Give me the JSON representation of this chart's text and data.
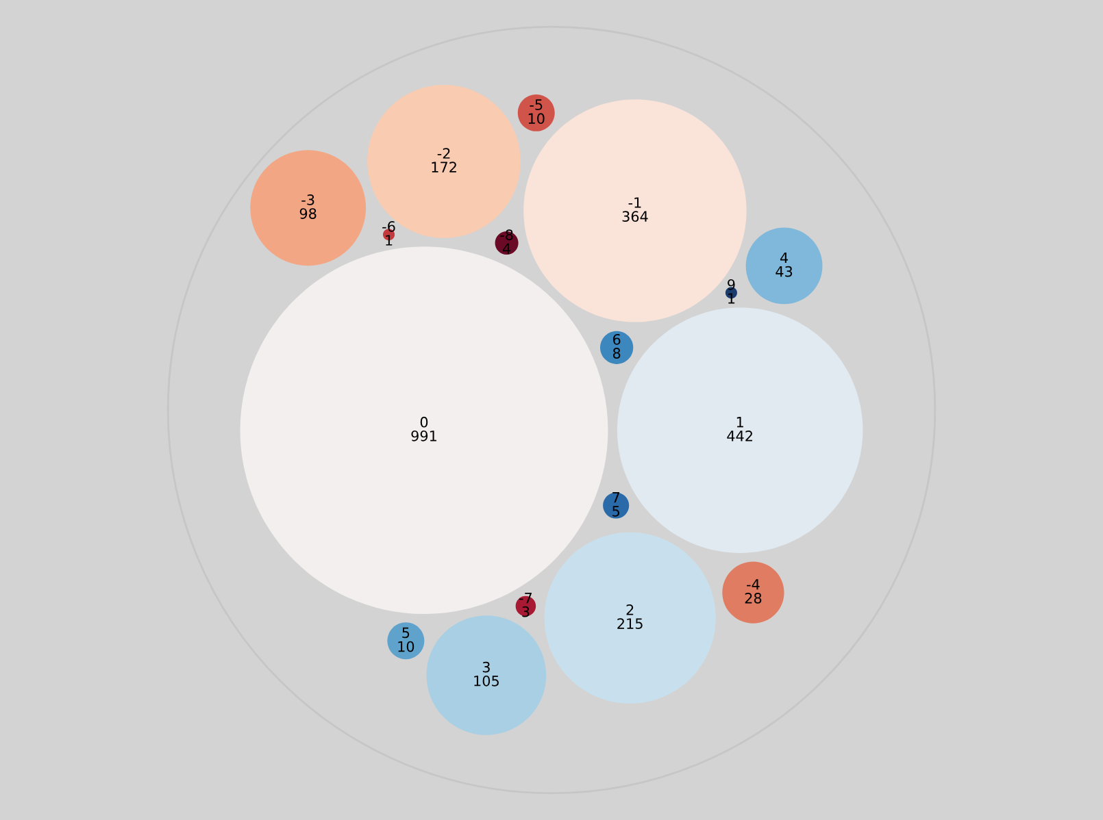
{
  "chart_data": {
    "type": "other",
    "data_labels": true,
    "categories": [
      "0",
      "1",
      "-1",
      "2",
      "-2",
      "3",
      "-3",
      "4",
      "-4",
      "5",
      "-5",
      "6",
      "7",
      "-8",
      "-7",
      "9",
      "-6"
    ],
    "values": [
      991,
      442,
      364,
      215,
      172,
      105,
      98,
      43,
      28,
      10,
      10,
      8,
      5,
      4,
      3,
      1,
      1
    ],
    "colors": [
      "#f2efee",
      "#e0eaf0",
      "#fae3d8",
      "#c8e0ed",
      "#f9cbb0",
      "#a9cfe4",
      "#f3a683",
      "#7fb8da",
      "#e07c61",
      "#5fa2cc",
      "#d0544a",
      "#3c87bd",
      "#2b6aa8",
      "#6b0a26",
      "#a81a33",
      "#1a3d6e",
      "#c23a3e"
    ]
  }
}
